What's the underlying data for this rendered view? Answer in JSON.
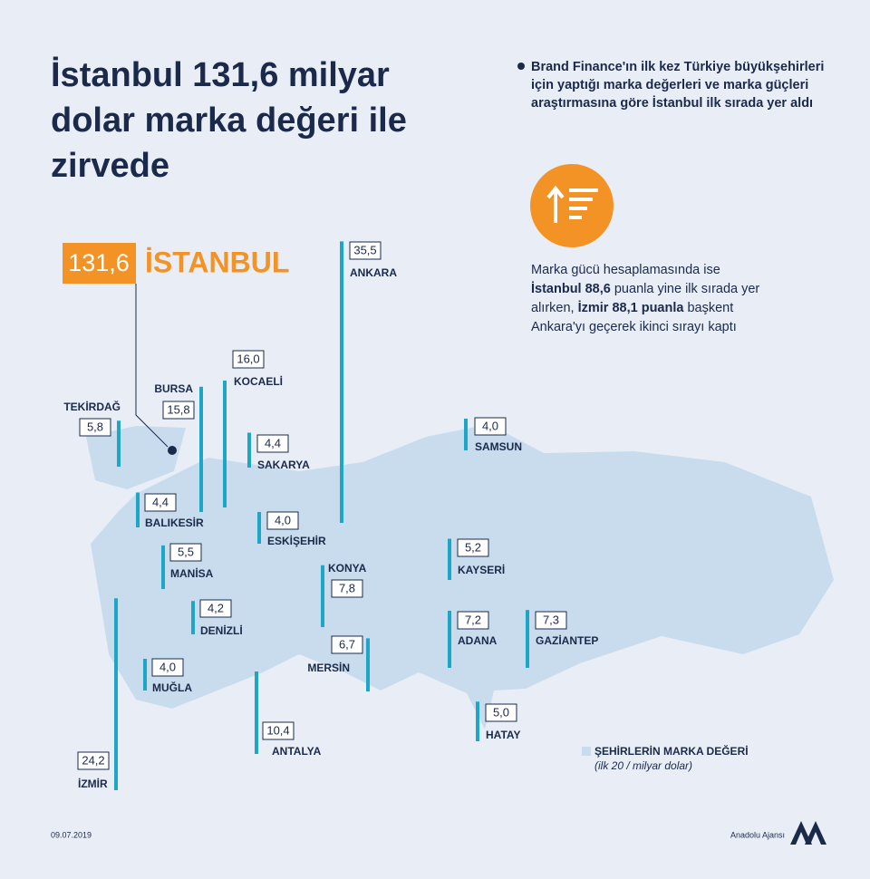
{
  "header": {
    "title_lines": [
      "İstanbul 131,6 milyar",
      "dolar marka değeri ile",
      "zirvede"
    ],
    "bullet": "Brand Finance'ın ilk kez Türkiye büyükşehirleri için yaptığı marka değerleri ve marka güçleri araştırmasına göre İstanbul ilk sırada yer aldı"
  },
  "note": {
    "parts": [
      {
        "text": "Marka gücü hesaplamasında ise ",
        "bold": false
      },
      {
        "text": "İstanbul 88,6",
        "bold": true
      },
      {
        "text": " puanla yine ilk sırada yer alırken, ",
        "bold": false
      },
      {
        "text": "İzmir 88,1 puanla",
        "bold": true
      },
      {
        "text": " başkent Ankara'yı geçerek ikinci sırayı kaptı",
        "bold": false
      }
    ]
  },
  "istanbul": {
    "name": "İSTANBUL",
    "value": "131,6"
  },
  "cities": [
    {
      "name": "ANKARA",
      "value": 35.5,
      "value_label": "35,5"
    },
    {
      "name": "KOCAELİ",
      "value": 16.0,
      "value_label": "16,0"
    },
    {
      "name": "BURSA",
      "value": 15.8,
      "value_label": "15,8"
    },
    {
      "name": "TEKİRDAĞ",
      "value": 5.8,
      "value_label": "5,8"
    },
    {
      "name": "SAKARYA",
      "value": 4.4,
      "value_label": "4,4"
    },
    {
      "name": "SAMSUN",
      "value": 4.0,
      "value_label": "4,0"
    },
    {
      "name": "BALIKESİR",
      "value": 4.4,
      "value_label": "4,4"
    },
    {
      "name": "ESKİŞEHİR",
      "value": 4.0,
      "value_label": "4,0"
    },
    {
      "name": "MANİSA",
      "value": 5.5,
      "value_label": "5,5"
    },
    {
      "name": "KAYSERİ",
      "value": 5.2,
      "value_label": "5,2"
    },
    {
      "name": "KONYA",
      "value": 7.8,
      "value_label": "7,8"
    },
    {
      "name": "DENİZLİ",
      "value": 4.2,
      "value_label": "4,2"
    },
    {
      "name": "ADANA",
      "value": 7.2,
      "value_label": "7,2"
    },
    {
      "name": "GAZİANTEP",
      "value": 7.3,
      "value_label": "7,3"
    },
    {
      "name": "MERSİN",
      "value": 6.7,
      "value_label": "6,7"
    },
    {
      "name": "MUĞLA",
      "value": 4.0,
      "value_label": "4,0"
    },
    {
      "name": "HATAY",
      "value": 5.0,
      "value_label": "5,0"
    },
    {
      "name": "ANTALYA",
      "value": 10.4,
      "value_label": "10,4"
    },
    {
      "name": "İZMİR",
      "value": 24.2,
      "value_label": "24,2"
    }
  ],
  "legend": {
    "title": "ŞEHİRLERİN MARKA DEĞERİ",
    "subtitle": "(ilk 20 / milyar dolar)"
  },
  "footer": {
    "date": "09.07.2019",
    "source": "Anadolu Ajansı"
  }
}
